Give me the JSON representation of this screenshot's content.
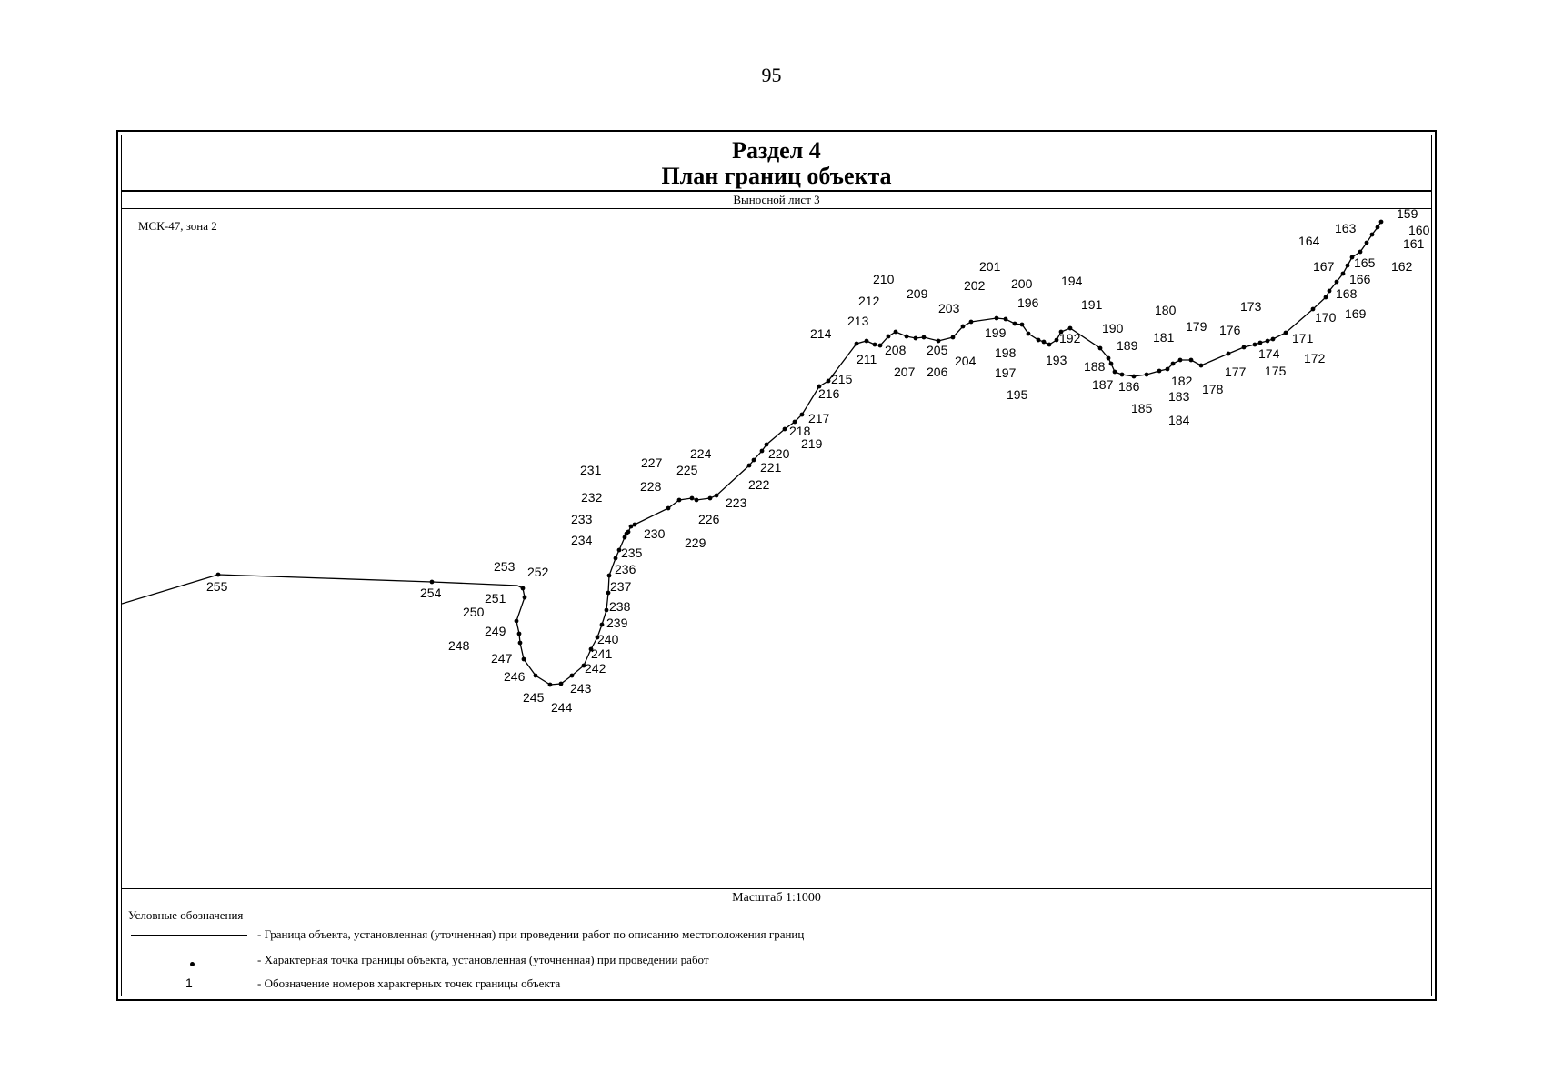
{
  "page_number": "95",
  "section_title": "Раздел 4",
  "plan_title": "План границ объекта",
  "sheet_label": "Выносной лист 3",
  "coordinate_system": "МСК-47, зона 2",
  "scale_label": "Масштаб 1:1000",
  "legend": {
    "title": "Условные обозначения",
    "items": [
      {
        "symbol": "boundary-line",
        "text": "- Граница  объекта, установленная (уточненная) при проведении работ по описанию местоположения границ"
      },
      {
        "symbol": "boundary-point",
        "text": "- Характерная точка границы объекта, установленная (уточненная) при проведении работ"
      },
      {
        "symbol": "point-number",
        "symbol_text": "1",
        "text": "- Обозначение номеров характерных точек границы объекта"
      }
    ]
  },
  "boundary_points": [
    "159",
    "160",
    "161",
    "162",
    "163",
    "164",
    "165",
    "166",
    "167",
    "168",
    "169",
    "170",
    "171",
    "172",
    "173",
    "174",
    "175",
    "176",
    "177",
    "178",
    "179",
    "180",
    "181",
    "182",
    "183",
    "184",
    "185",
    "186",
    "187",
    "188",
    "189",
    "190",
    "191",
    "192",
    "193",
    "194",
    "195",
    "196",
    "197",
    "198",
    "199",
    "200",
    "201",
    "202",
    "203",
    "204",
    "205",
    "206",
    "207",
    "208",
    "209",
    "210",
    "211",
    "212",
    "213",
    "214",
    "215",
    "216",
    "217",
    "218",
    "219",
    "220",
    "221",
    "222",
    "223",
    "224",
    "225",
    "226",
    "227",
    "228",
    "229",
    "230",
    "231",
    "232",
    "233",
    "234",
    "235",
    "236",
    "237",
    "238",
    "239",
    "240",
    "241",
    "242",
    "243",
    "244",
    "245",
    "246",
    "247",
    "248",
    "249",
    "250",
    "251",
    "252",
    "253",
    "254",
    "255"
  ],
  "colors": {
    "ink": "#000000",
    "background": "#ffffff"
  }
}
